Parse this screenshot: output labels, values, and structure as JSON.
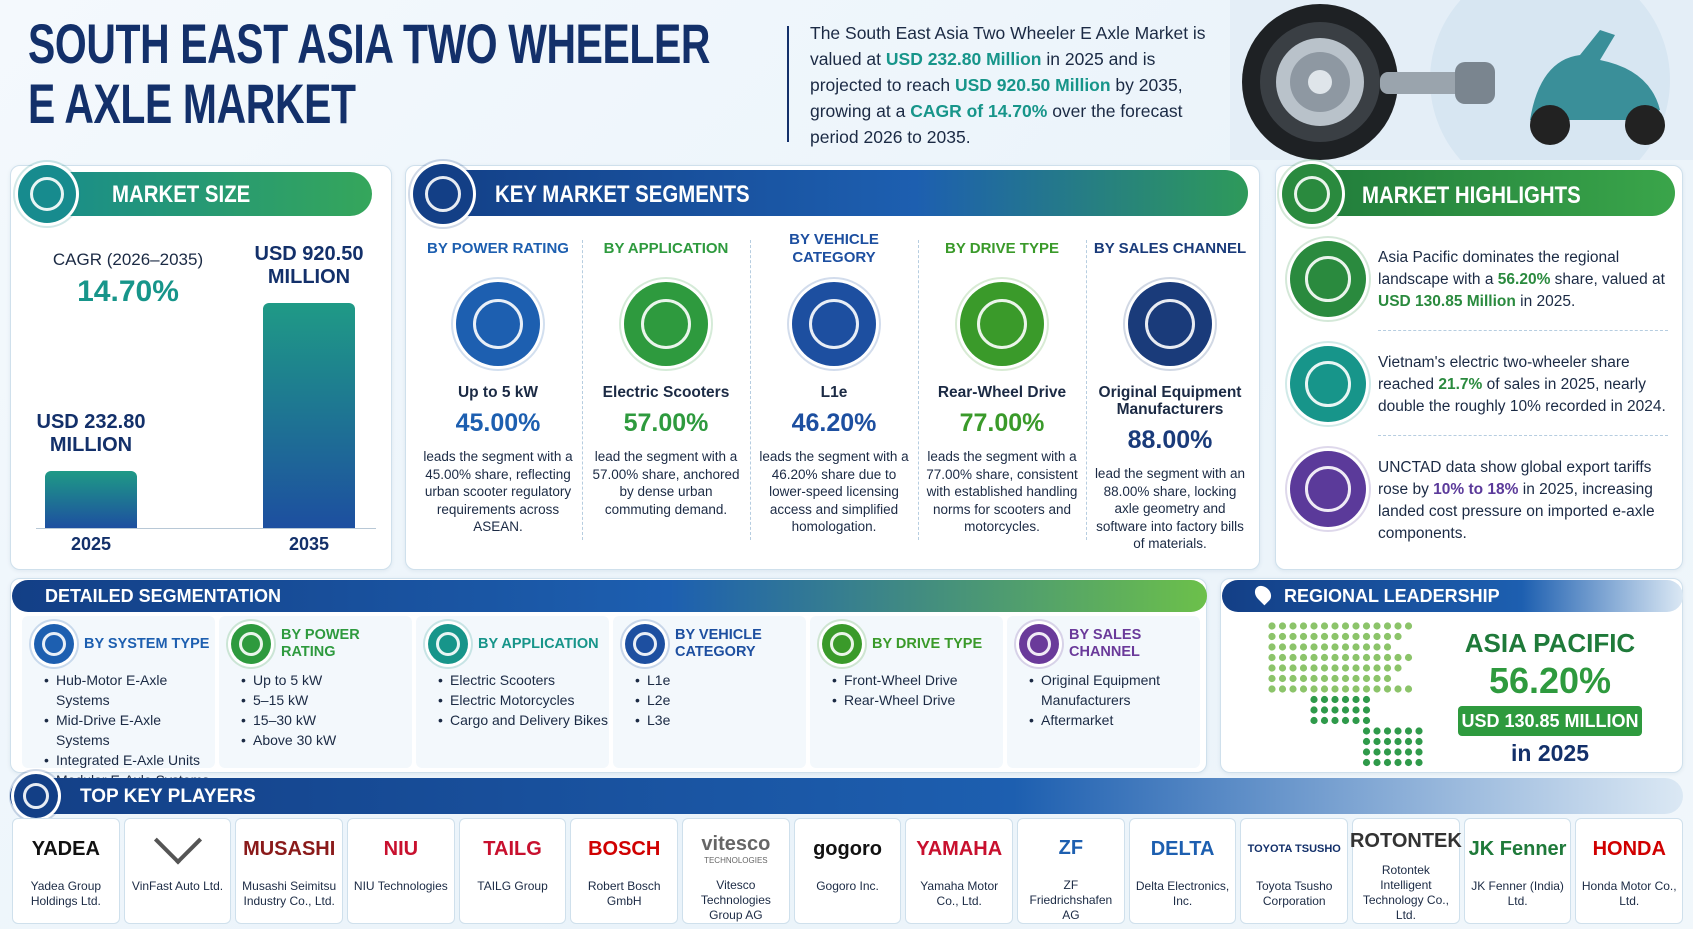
{
  "header": {
    "title_lines": [
      "SOUTH EAST ASIA TWO WHEELER",
      "E AXLE MARKET"
    ],
    "summary": [
      "The South East Asia Two Wheeler E Axle Market is valued at ",
      "USD 232.80 Million",
      " in 2025 and is projected to reach ",
      "USD 920.50 Million",
      " by 2035, growing at a ",
      "CAGR of 14.70%",
      " over the forecast period 2026 to 2035."
    ]
  },
  "market_size": {
    "title": "MARKET SIZE",
    "cagr_label": "CAGR (2026–2035)",
    "cagr_value": "14.70%",
    "bars": [
      {
        "year": "2025",
        "label": "USD 232.80 MILLION",
        "value": 232.8
      },
      {
        "year": "2035",
        "label": "USD 920.50 MILLION",
        "value": 920.5
      }
    ]
  },
  "key_segments": {
    "title": "KEY MARKET SEGMENTS",
    "items": [
      {
        "heading": "BY POWER RATING",
        "name": "Up to 5 kW",
        "share": "45.00%",
        "text": "leads the segment with a 45.00% share, reflecting urban scooter regulatory requirements across ASEAN."
      },
      {
        "heading": "BY APPLICATION",
        "name": "Electric Scooters",
        "share": "57.00%",
        "text": "lead the segment with a 57.00% share, anchored by dense urban commuting demand."
      },
      {
        "heading": "BY VEHICLE CATEGORY",
        "name": "L1e",
        "share": "46.20%",
        "text": "leads the segment with a 46.20% share due to lower-speed licensing access and simplified homologation."
      },
      {
        "heading": "BY DRIVE TYPE",
        "name": "Rear-Wheel Drive",
        "share": "77.00%",
        "text": "leads the segment with a 77.00% share, consistent with established handling norms for scooters and motorcycles."
      },
      {
        "heading": "BY SALES CHANNEL",
        "name": "Original Equipment Manufacturers",
        "share": "88.00%",
        "text": "lead the segment with an 88.00% share, locking axle geometry and software into factory bills of materials."
      }
    ]
  },
  "highlights": {
    "title": "MARKET HIGHLIGHTS",
    "items": [
      [
        "Asia Pacific dominates the regional landscape with a ",
        "56.20%",
        " share, valued at ",
        "USD 130.85 Million",
        " in 2025."
      ],
      [
        "Vietnam's electric two-wheeler share reached ",
        "21.7%",
        " of sales in 2025, nearly double the roughly 10% recorded in 2024."
      ],
      [
        "UNCTAD data show global export tariffs rose by ",
        "10% to 18%",
        " in 2025, increasing landed cost pressure on imported e-axle components."
      ]
    ]
  },
  "detailed": {
    "title": "DETAILED SEGMENTATION",
    "groups": [
      {
        "heading": "BY SYSTEM TYPE",
        "items": [
          "Hub-Motor E-Axle Systems",
          "Mid-Drive E-Axle Systems",
          "Integrated E-Axle Units",
          "Modular E-Axle Systems"
        ]
      },
      {
        "heading": "BY POWER RATING",
        "items": [
          "Up to 5 kW",
          "5–15 kW",
          "15–30 kW",
          "Above 30 kW"
        ]
      },
      {
        "heading": "BY APPLICATION",
        "items": [
          "Electric Scooters",
          "Electric Motorcycles",
          "Cargo and Delivery Bikes"
        ]
      },
      {
        "heading": "BY VEHICLE CATEGORY",
        "items": [
          "L1e",
          "L2e",
          "L3e"
        ]
      },
      {
        "heading": "BY DRIVE TYPE",
        "items": [
          "Front-Wheel Drive",
          "Rear-Wheel Drive"
        ]
      },
      {
        "heading": "BY SALES CHANNEL",
        "items": [
          "Original Equipment Manufacturers",
          "Aftermarket"
        ]
      }
    ]
  },
  "regional": {
    "title": "REGIONAL LEADERSHIP",
    "region": "ASIA PACIFIC",
    "share": "56.20%",
    "value": "USD 130.85 MILLION",
    "year": "in 2025"
  },
  "players": {
    "title": "TOP KEY PLAYERS",
    "items": [
      {
        "logo": "YADEA",
        "name": "Yadea Group Holdings Ltd."
      },
      {
        "name": "VinFast Auto Ltd."
      },
      {
        "logo": "MUSASHI",
        "name": "Musashi Seimitsu Industry Co., Ltd."
      },
      {
        "logo": "NIU",
        "name": "NIU Technologies"
      },
      {
        "logo": "TAILG",
        "name": "TAILG Group"
      },
      {
        "logo": "BOSCH",
        "name": "Robert Bosch GmbH"
      },
      {
        "logo": "vitesco",
        "logo_sub": "TECHNOLOGIES",
        "name": "Vitesco Technologies Group AG"
      },
      {
        "logo": "gogoro",
        "name": "Gogoro Inc."
      },
      {
        "logo": "YAMAHA",
        "name": "Yamaha Motor Co., Ltd."
      },
      {
        "logo": "ZF",
        "name": "ZF Friedrichshafen AG"
      },
      {
        "logo": "DELTA",
        "name": "Delta Electronics, Inc."
      },
      {
        "logo": "TOYOTA TSUSHO",
        "name": "Toyota Tsusho Corporation"
      },
      {
        "logo": "ROTONTEK",
        "name": "Rotontek Intelligent Technology Co., Ltd."
      },
      {
        "logo": "JK Fenner",
        "name": "JK Fenner (India) Ltd."
      },
      {
        "logo": "HONDA",
        "name": "Honda Motor Co., Ltd."
      }
    ]
  }
}
